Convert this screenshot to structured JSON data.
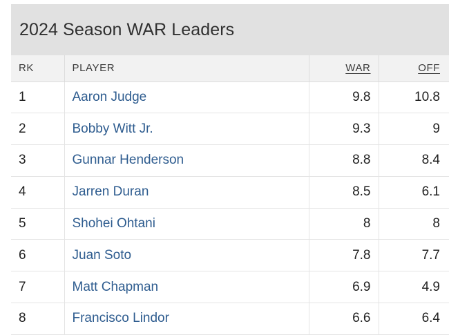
{
  "table": {
    "title": "2024 Season WAR Leaders",
    "columns": {
      "rk": "RK",
      "player": "PLAYER",
      "war": "WAR",
      "off": "OFF"
    },
    "rows": [
      {
        "rk": "1",
        "player": "Aaron Judge",
        "war": "9.8",
        "off": "10.8"
      },
      {
        "rk": "2",
        "player": "Bobby Witt Jr.",
        "war": "9.3",
        "off": "9"
      },
      {
        "rk": "3",
        "player": "Gunnar Henderson",
        "war": "8.8",
        "off": "8.4"
      },
      {
        "rk": "4",
        "player": "Jarren Duran",
        "war": "8.5",
        "off": "6.1"
      },
      {
        "rk": "5",
        "player": "Shohei Ohtani",
        "war": "8",
        "off": "8"
      },
      {
        "rk": "6",
        "player": "Juan Soto",
        "war": "7.8",
        "off": "7.7"
      },
      {
        "rk": "7",
        "player": "Matt Chapman",
        "war": "6.9",
        "off": "4.9"
      },
      {
        "rk": "8",
        "player": "Francisco Lindor",
        "war": "6.6",
        "off": "6.4"
      }
    ]
  },
  "colors": {
    "title_bar": "#e1e1e1",
    "header_row": "#f2f2f2",
    "player_link": "#2e5c8f",
    "text": "#222222"
  }
}
